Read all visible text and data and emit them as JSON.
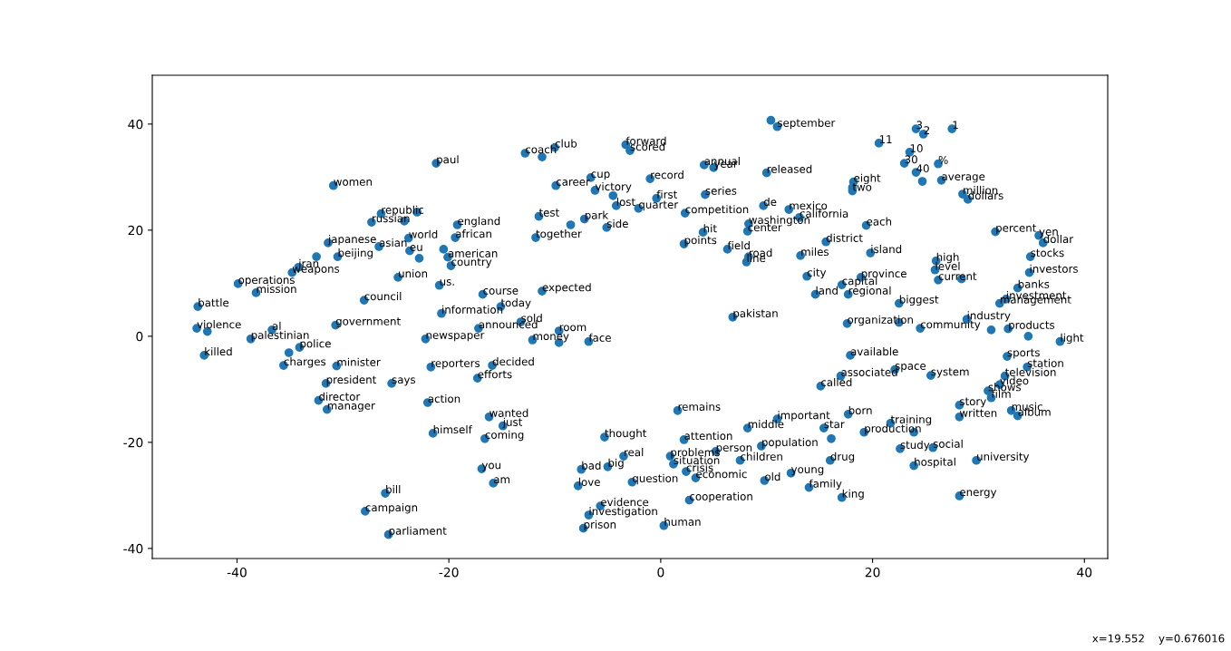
{
  "chart_data": {
    "type": "scatter",
    "color": "#1f77b4",
    "marker": "circle",
    "grid": false,
    "xlim": [
      -48,
      42.2
    ],
    "ylim": [
      -41.9,
      49.2
    ],
    "xticks": [
      -40,
      -20,
      0,
      20,
      40
    ],
    "yticks": [
      -40,
      -20,
      0,
      20,
      40
    ],
    "x": [
      -30.9,
      -21.2,
      -26.4,
      -27.3,
      -24.2,
      -23.0,
      -31.4,
      -32.5,
      -30.5,
      -26.6,
      -23.8,
      -23.7,
      -22.8,
      -20.5,
      -34.2,
      -34.8,
      -39.9,
      -24.8,
      -20.9,
      -38.2,
      -43.7,
      -43.8,
      -42.8,
      -43.1,
      -38.7,
      -36.7,
      -34.1,
      -35.1,
      -35.6,
      -30.6,
      -31.6,
      -32.3,
      -31.5,
      -25.4,
      -22.0,
      -21.5,
      -26.0,
      -27.9,
      -25.7,
      -22.2,
      -21.7,
      -28.0,
      -30.7,
      -19.2,
      -19.4,
      -20.1,
      -19.8,
      -12.8,
      -10.0,
      -11.2,
      -9.9,
      -3.3,
      -2.9,
      -6.6,
      -1.0,
      -6.2,
      -0.4,
      -4.5,
      -4.2,
      -2.1,
      2.3,
      4.1,
      5.0,
      4.2,
      10.0,
      9.7,
      -11.5,
      -7.2,
      -8.5,
      -11.8,
      -5.1,
      4.0,
      2.2,
      6.3,
      -16.8,
      -11.2,
      8.1,
      -15.1,
      10.4,
      11.0,
      27.5,
      24.1,
      24.8,
      20.6,
      23.5,
      23.0,
      26.2,
      24.1,
      24.7,
      26.5,
      28.5,
      29.0,
      18.2,
      18.1,
      18.1,
      12.1,
      13.1,
      19.4,
      15.6,
      13.2,
      31.6,
      35.7,
      36.1,
      34.9,
      26.0,
      25.9,
      26.2,
      28.4,
      34.8,
      33.7,
      17.1,
      17.7,
      14.6,
      18.9,
      22.5,
      32.6,
      32.0,
      -9.6,
      -12.1,
      -9.6,
      -6.8,
      -17.3,
      -16.2,
      -14.9,
      -7.8,
      -2.7,
      0.9,
      1.2,
      2.4,
      3.3,
      2.7,
      -5.7,
      -6.8,
      0.3,
      -7.3,
      1.6,
      8.2,
      2.2,
      5.2,
      -5.3,
      -5.0,
      -7.5,
      -16.9,
      -15.8,
      -3.5,
      31.2,
      32.8,
      34.7,
      37.7,
      17.9,
      22.1,
      25.5,
      32.7,
      34.6,
      32.5,
      32.0,
      30.9,
      31.2,
      33.1,
      33.7,
      28.2,
      28.2,
      17.0,
      15.1,
      17.7,
      21.7,
      19.2,
      23.9,
      16.1,
      15.4,
      22.6,
      25.7,
      29.8,
      23.9,
      16.0,
      12.3,
      14.0,
      17.1,
      28.2,
      22.5,
      6.8,
      8.3,
      8.2,
      8.3,
      11.0,
      9.5,
      7.5,
      9.8,
      -16.6,
      -13.2,
      -17.2,
      -20.7,
      -15.9,
      13.8,
      19.8,
      17.6,
      24.5,
      28.9
    ],
    "values": [
      28.4,
      32.6,
      23.1,
      21.5,
      21.7,
      23.4,
      17.6,
      15.0,
      15.0,
      16.9,
      18.5,
      16.1,
      14.7,
      16.4,
      13.0,
      12.0,
      9.9,
      11.1,
      9.6,
      8.2,
      5.6,
      1.5,
      0.9,
      -3.6,
      -0.5,
      1.2,
      -2.1,
      -3.1,
      -5.5,
      -5.6,
      -8.9,
      -12.1,
      -13.8,
      -8.9,
      -12.5,
      -18.3,
      -29.6,
      -33.0,
      -37.4,
      -0.5,
      -5.8,
      6.8,
      2.1,
      21.0,
      18.6,
      14.9,
      13.3,
      34.5,
      35.6,
      33.8,
      28.4,
      36.1,
      35.0,
      29.9,
      29.7,
      27.5,
      26.0,
      26.5,
      24.6,
      24.1,
      23.2,
      32.3,
      31.8,
      26.7,
      30.8,
      24.6,
      22.6,
      22.1,
      21.0,
      18.6,
      20.5,
      19.6,
      17.4,
      16.4,
      7.9,
      8.5,
      14.0,
      5.6,
      40.7,
      39.5,
      39.1,
      39.1,
      38.1,
      36.4,
      34.7,
      32.6,
      32.5,
      30.9,
      29.2,
      29.4,
      26.8,
      25.8,
      29.1,
      28.0,
      27.4,
      23.9,
      22.4,
      20.9,
      17.8,
      15.2,
      19.7,
      19.0,
      17.6,
      15.0,
      14.2,
      12.5,
      10.6,
      10.8,
      12.0,
      9.1,
      9.7,
      7.9,
      7.9,
      11.1,
      6.2,
      7.0,
      6.2,
      1.0,
      -0.7,
      -1.2,
      -1.0,
      -7.9,
      -15.2,
      -16.9,
      -28.2,
      -27.5,
      -22.6,
      -24.1,
      -25.5,
      -26.7,
      -30.9,
      -32.0,
      -33.7,
      -35.7,
      -36.2,
      -14.0,
      -17.3,
      -19.5,
      -21.7,
      -19.0,
      -24.6,
      -25.1,
      -25.0,
      -27.7,
      -22.6,
      1.2,
      1.4,
      0.0,
      -1.0,
      -3.6,
      -6.3,
      -7.4,
      -3.8,
      -5.8,
      -7.5,
      -9.1,
      -10.3,
      -11.6,
      -14.0,
      -15.0,
      -13.0,
      -15.2,
      -7.5,
      -9.4,
      -14.7,
      -16.4,
      -18.1,
      -18.1,
      -19.3,
      -17.3,
      -21.2,
      -21.0,
      -23.4,
      -24.4,
      -23.4,
      -25.8,
      -28.5,
      -30.4,
      -30.1,
      2.6,
      3.6,
      21.2,
      19.8,
      15.0,
      -15.6,
      -20.7,
      -23.4,
      -27.2,
      -19.3,
      2.7,
      1.5,
      4.3,
      -5.5,
      11.3,
      15.7,
      2.4,
      1.5,
      3.2
    ],
    "annotations": [
      {
        "text": "women",
        "x": -30.9,
        "y": 28.4
      },
      {
        "text": "paul",
        "x": -21.2,
        "y": 32.6
      },
      {
        "text": "republic",
        "x": -26.4,
        "y": 23.1
      },
      {
        "text": "russian",
        "x": -27.3,
        "y": 21.5
      },
      {
        "text": "japanese",
        "x": -31.4,
        "y": 17.6
      },
      {
        "text": "beijing",
        "x": -30.5,
        "y": 15.0
      },
      {
        "text": "asian",
        "x": -26.6,
        "y": 16.9
      },
      {
        "text": "world",
        "x": -23.8,
        "y": 18.5
      },
      {
        "text": "eu",
        "x": -23.7,
        "y": 16.1
      },
      {
        "text": "iran",
        "x": -34.2,
        "y": 13.0
      },
      {
        "text": "weapons",
        "x": -34.8,
        "y": 12.0
      },
      {
        "text": "operations",
        "x": -39.9,
        "y": 9.9
      },
      {
        "text": "union",
        "x": -24.8,
        "y": 11.1
      },
      {
        "text": "us.",
        "x": -20.9,
        "y": 9.6
      },
      {
        "text": "mission",
        "x": -38.2,
        "y": 8.2
      },
      {
        "text": "battle",
        "x": -43.7,
        "y": 5.6
      },
      {
        "text": "violence",
        "x": -43.8,
        "y": 1.5
      },
      {
        "text": "killed",
        "x": -43.1,
        "y": -3.6
      },
      {
        "text": "palestinian",
        "x": -38.7,
        "y": -0.5
      },
      {
        "text": "al",
        "x": -36.7,
        "y": 1.2
      },
      {
        "text": "police",
        "x": -34.1,
        "y": -2.1
      },
      {
        "text": "charges",
        "x": -35.6,
        "y": -5.5
      },
      {
        "text": "minister",
        "x": -30.6,
        "y": -5.6
      },
      {
        "text": "president",
        "x": -31.6,
        "y": -8.9
      },
      {
        "text": "director",
        "x": -32.3,
        "y": -12.1
      },
      {
        "text": "manager",
        "x": -31.5,
        "y": -13.8
      },
      {
        "text": "says",
        "x": -25.4,
        "y": -8.9
      },
      {
        "text": "action",
        "x": -22.0,
        "y": -12.5
      },
      {
        "text": "himself",
        "x": -21.5,
        "y": -18.3
      },
      {
        "text": "bill",
        "x": -26.0,
        "y": -29.6
      },
      {
        "text": "campaign",
        "x": -27.9,
        "y": -33.0
      },
      {
        "text": "parliament",
        "x": -25.7,
        "y": -37.4
      },
      {
        "text": "newspaper",
        "x": -22.2,
        "y": -0.5
      },
      {
        "text": "reporters",
        "x": -21.7,
        "y": -5.8
      },
      {
        "text": "council",
        "x": -28.0,
        "y": 6.8
      },
      {
        "text": "government",
        "x": -30.7,
        "y": 2.1
      },
      {
        "text": "england",
        "x": -19.2,
        "y": 21.0
      },
      {
        "text": "african",
        "x": -19.4,
        "y": 18.6
      },
      {
        "text": "american",
        "x": -20.1,
        "y": 14.9
      },
      {
        "text": "country",
        "x": -19.8,
        "y": 13.3
      },
      {
        "text": "coach",
        "x": -12.8,
        "y": 34.5
      },
      {
        "text": "club",
        "x": -10.0,
        "y": 35.6
      },
      {
        "text": "career",
        "x": -9.9,
        "y": 28.4
      },
      {
        "text": "forward",
        "x": -3.3,
        "y": 36.1
      },
      {
        "text": "scored",
        "x": -2.9,
        "y": 35.0
      },
      {
        "text": "cup",
        "x": -6.6,
        "y": 29.9
      },
      {
        "text": "record",
        "x": -1.0,
        "y": 29.7
      },
      {
        "text": "victory",
        "x": -6.2,
        "y": 27.5
      },
      {
        "text": "first",
        "x": -0.4,
        "y": 26.0
      },
      {
        "text": "lost",
        "x": -4.2,
        "y": 24.6
      },
      {
        "text": "quarter",
        "x": -2.1,
        "y": 24.1
      },
      {
        "text": "competition",
        "x": 2.3,
        "y": 23.2
      },
      {
        "text": "annual",
        "x": 4.1,
        "y": 32.3
      },
      {
        "text": "year",
        "x": 5.0,
        "y": 31.8
      },
      {
        "text": "series",
        "x": 4.2,
        "y": 26.7
      },
      {
        "text": "released",
        "x": 10.0,
        "y": 30.8
      },
      {
        "text": "de",
        "x": 9.7,
        "y": 24.6
      },
      {
        "text": "test",
        "x": -11.5,
        "y": 22.6
      },
      {
        "text": "park",
        "x": -7.2,
        "y": 22.1
      },
      {
        "text": "together",
        "x": -11.8,
        "y": 18.6
      },
      {
        "text": "side",
        "x": -5.1,
        "y": 20.5
      },
      {
        "text": "hit",
        "x": 4.0,
        "y": 19.6
      },
      {
        "text": "points",
        "x": 2.2,
        "y": 17.4
      },
      {
        "text": "field",
        "x": 6.3,
        "y": 16.4
      },
      {
        "text": "course",
        "x": -16.8,
        "y": 7.9
      },
      {
        "text": "expected",
        "x": -11.2,
        "y": 8.5
      },
      {
        "text": "line",
        "x": 8.1,
        "y": 14.0
      },
      {
        "text": "today",
        "x": -15.1,
        "y": 5.6
      },
      {
        "text": "september",
        "x": 11.0,
        "y": 39.5
      },
      {
        "text": "1",
        "x": 27.5,
        "y": 39.1
      },
      {
        "text": "3",
        "x": 24.1,
        "y": 39.1
      },
      {
        "text": "2",
        "x": 24.8,
        "y": 38.1
      },
      {
        "text": "11",
        "x": 20.6,
        "y": 36.4
      },
      {
        "text": "10",
        "x": 23.5,
        "y": 34.7
      },
      {
        "text": "30",
        "x": 23.0,
        "y": 32.6
      },
      {
        "text": "%",
        "x": 26.2,
        "y": 32.5
      },
      {
        "text": "40",
        "x": 24.1,
        "y": 30.9
      },
      {
        "text": "average",
        "x": 26.5,
        "y": 29.4
      },
      {
        "text": "million",
        "x": 28.5,
        "y": 26.8
      },
      {
        "text": "dollars",
        "x": 29.0,
        "y": 25.8
      },
      {
        "text": "eight",
        "x": 18.2,
        "y": 29.1
      },
      {
        "text": "two",
        "x": 18.1,
        "y": 27.4
      },
      {
        "text": "mexico",
        "x": 12.1,
        "y": 23.9
      },
      {
        "text": "california",
        "x": 13.1,
        "y": 22.4
      },
      {
        "text": "each",
        "x": 19.4,
        "y": 20.9
      },
      {
        "text": "district",
        "x": 15.6,
        "y": 17.8
      },
      {
        "text": "miles",
        "x": 13.2,
        "y": 15.2
      },
      {
        "text": "percent",
        "x": 31.6,
        "y": 19.7
      },
      {
        "text": "yen",
        "x": 35.7,
        "y": 19.0
      },
      {
        "text": "dollar",
        "x": 36.1,
        "y": 17.6
      },
      {
        "text": "stocks",
        "x": 34.9,
        "y": 15.0
      },
      {
        "text": "high",
        "x": 26.0,
        "y": 14.2
      },
      {
        "text": "level",
        "x": 25.9,
        "y": 12.5
      },
      {
        "text": "current",
        "x": 26.2,
        "y": 10.6
      },
      {
        "text": "investors",
        "x": 34.8,
        "y": 12.0
      },
      {
        "text": "banks",
        "x": 33.7,
        "y": 9.1
      },
      {
        "text": "capital",
        "x": 17.1,
        "y": 9.7
      },
      {
        "text": "regional",
        "x": 17.7,
        "y": 7.9
      },
      {
        "text": "land",
        "x": 14.6,
        "y": 7.9
      },
      {
        "text": "province",
        "x": 18.9,
        "y": 11.1
      },
      {
        "text": "biggest",
        "x": 22.5,
        "y": 6.2
      },
      {
        "text": "investment",
        "x": 32.6,
        "y": 7.0
      },
      {
        "text": "management",
        "x": 32.0,
        "y": 6.2
      },
      {
        "text": "room",
        "x": -9.6,
        "y": 1.0
      },
      {
        "text": "money",
        "x": -12.1,
        "y": -0.7
      },
      {
        "text": "face",
        "x": -6.8,
        "y": -1.0
      },
      {
        "text": "efforts",
        "x": -17.3,
        "y": -7.9
      },
      {
        "text": "wanted",
        "x": -16.2,
        "y": -15.2
      },
      {
        "text": "just",
        "x": -14.9,
        "y": -16.9
      },
      {
        "text": "love",
        "x": -7.8,
        "y": -28.2
      },
      {
        "text": "question",
        "x": -2.7,
        "y": -27.5
      },
      {
        "text": "problems",
        "x": 0.9,
        "y": -22.6
      },
      {
        "text": "situation",
        "x": 1.2,
        "y": -24.1
      },
      {
        "text": "crisis",
        "x": 2.4,
        "y": -25.5
      },
      {
        "text": "economic",
        "x": 3.3,
        "y": -26.7
      },
      {
        "text": "cooperation",
        "x": 2.7,
        "y": -30.9
      },
      {
        "text": "evidence",
        "x": -5.7,
        "y": -32.0
      },
      {
        "text": "investigation",
        "x": -6.8,
        "y": -33.7
      },
      {
        "text": "human",
        "x": 0.3,
        "y": -35.7
      },
      {
        "text": "prison",
        "x": -7.3,
        "y": -36.2
      },
      {
        "text": "remains",
        "x": 1.6,
        "y": -14.0
      },
      {
        "text": "middle",
        "x": 8.2,
        "y": -17.3
      },
      {
        "text": "attention",
        "x": 2.2,
        "y": -19.5
      },
      {
        "text": "person",
        "x": 5.2,
        "y": -21.7
      },
      {
        "text": "thought",
        "x": -5.3,
        "y": -19.0
      },
      {
        "text": "big",
        "x": -5.0,
        "y": -24.6
      },
      {
        "text": "bad",
        "x": -7.5,
        "y": -25.1
      },
      {
        "text": "you",
        "x": -16.9,
        "y": -25.0
      },
      {
        "text": "am",
        "x": -15.8,
        "y": -27.7
      },
      {
        "text": "real",
        "x": -3.5,
        "y": -22.6
      },
      {
        "text": "products",
        "x": 32.8,
        "y": 1.4
      },
      {
        "text": "light",
        "x": 37.7,
        "y": -1.0
      },
      {
        "text": "available",
        "x": 17.9,
        "y": -3.6
      },
      {
        "text": "space",
        "x": 22.1,
        "y": -6.3
      },
      {
        "text": "system",
        "x": 25.5,
        "y": -7.4
      },
      {
        "text": "sports",
        "x": 32.7,
        "y": -3.8
      },
      {
        "text": "station",
        "x": 34.6,
        "y": -5.8
      },
      {
        "text": "television",
        "x": 32.5,
        "y": -7.5
      },
      {
        "text": "video",
        "x": 32.0,
        "y": -9.1
      },
      {
        "text": "shows",
        "x": 30.9,
        "y": -10.3
      },
      {
        "text": "film",
        "x": 31.2,
        "y": -11.6
      },
      {
        "text": "music",
        "x": 33.1,
        "y": -14.0
      },
      {
        "text": "album",
        "x": 33.7,
        "y": -15.0
      },
      {
        "text": "story",
        "x": 28.2,
        "y": -13.0
      },
      {
        "text": "written",
        "x": 28.2,
        "y": -15.2
      },
      {
        "text": "associated",
        "x": 17.0,
        "y": -7.5
      },
      {
        "text": "called",
        "x": 15.1,
        "y": -9.4
      },
      {
        "text": "born",
        "x": 17.7,
        "y": -14.7
      },
      {
        "text": "training",
        "x": 21.7,
        "y": -16.4
      },
      {
        "text": "production",
        "x": 19.2,
        "y": -18.1
      },
      {
        "text": "star",
        "x": 15.4,
        "y": -17.3
      },
      {
        "text": "study",
        "x": 22.6,
        "y": -21.2
      },
      {
        "text": "social",
        "x": 25.7,
        "y": -21.0
      },
      {
        "text": "university",
        "x": 29.8,
        "y": -23.4
      },
      {
        "text": "hospital",
        "x": 23.9,
        "y": -24.4
      },
      {
        "text": "drug",
        "x": 16.0,
        "y": -23.4
      },
      {
        "text": "young",
        "x": 12.3,
        "y": -25.8
      },
      {
        "text": "family",
        "x": 14.0,
        "y": -28.5
      },
      {
        "text": "king",
        "x": 17.1,
        "y": -30.4
      },
      {
        "text": "energy",
        "x": 28.2,
        "y": -30.1
      },
      {
        "text": "pakistan",
        "x": 6.8,
        "y": 3.6
      },
      {
        "text": "washington",
        "x": 8.3,
        "y": 21.2
      },
      {
        "text": "center",
        "x": 8.2,
        "y": 19.8
      },
      {
        "text": "road",
        "x": 8.3,
        "y": 15.0
      },
      {
        "text": "important",
        "x": 11.0,
        "y": -15.6
      },
      {
        "text": "population",
        "x": 9.5,
        "y": -20.7
      },
      {
        "text": "children",
        "x": 7.5,
        "y": -23.4
      },
      {
        "text": "old",
        "x": 9.8,
        "y": -27.2
      },
      {
        "text": "coming",
        "x": -16.6,
        "y": -19.3
      },
      {
        "text": "sold",
        "x": -13.2,
        "y": 2.7
      },
      {
        "text": "announced",
        "x": -17.2,
        "y": 1.5
      },
      {
        "text": "information",
        "x": -20.7,
        "y": 4.3
      },
      {
        "text": "decided",
        "x": -15.9,
        "y": -5.5
      },
      {
        "text": "city",
        "x": 13.8,
        "y": 11.3
      },
      {
        "text": "island",
        "x": 19.8,
        "y": 15.7
      },
      {
        "text": "organization",
        "x": 17.6,
        "y": 2.4
      },
      {
        "text": "community",
        "x": 24.5,
        "y": 1.5
      },
      {
        "text": "industry",
        "x": 28.9,
        "y": 3.2
      },
      "x=19.552    y=0.676016"
    ]
  }
}
